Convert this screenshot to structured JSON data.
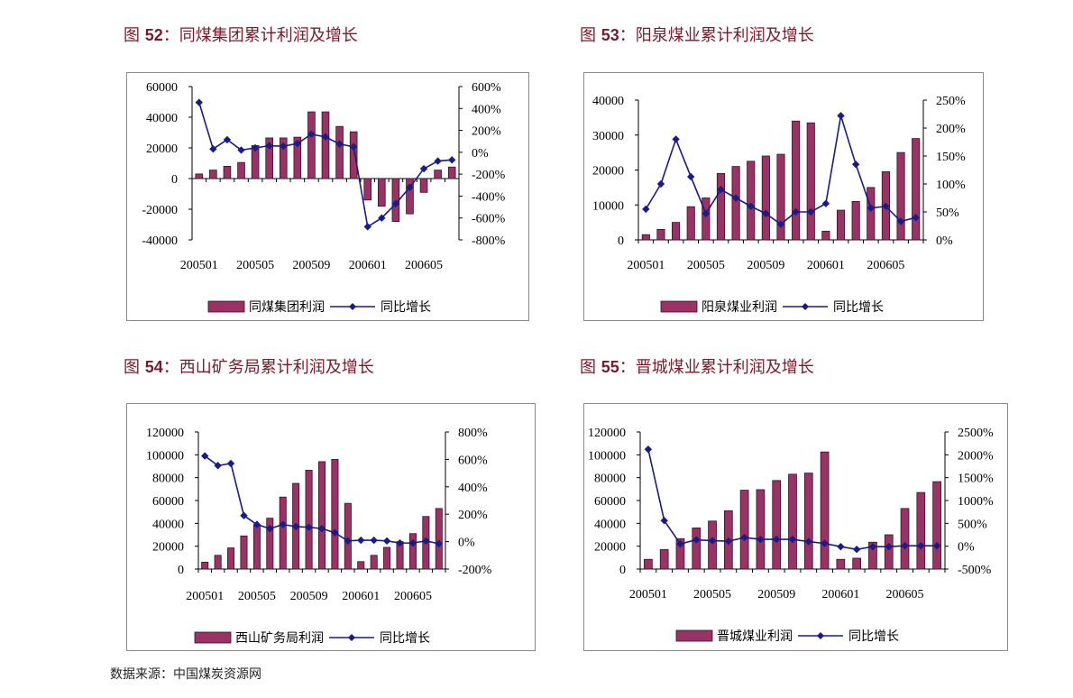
{
  "source": "数据来源：中国煤炭资源网",
  "colors": {
    "bar_fill": "#993366",
    "bar_stroke": "#3a0f22",
    "line": "#1a1a8a",
    "title": "#7a1a2a"
  },
  "chart_data": [
    {
      "type": "bar",
      "fig_label": "图",
      "fig_num": "52",
      "title": "：同煤集团累计利润及增长",
      "categories": [
        "200501",
        "200502",
        "200503",
        "200504",
        "200505",
        "200506",
        "200507",
        "200508",
        "200509",
        "200510",
        "200511",
        "200512",
        "200601",
        "200602",
        "200603",
        "200604",
        "200605",
        "200606",
        "200607"
      ],
      "x_tick_labels": [
        "200501",
        "200505",
        "200509",
        "200601",
        "200605"
      ],
      "series": [
        {
          "name": "同煤集团利润",
          "type": "bar",
          "axis": "left",
          "values": [
            3000,
            5500,
            8000,
            10500,
            21500,
            26500,
            26500,
            27000,
            43500,
            43500,
            34000,
            30500,
            -14000,
            -18000,
            -28000,
            -23000,
            -9000,
            5500,
            7500
          ]
        },
        {
          "name": "同比增长",
          "type": "line",
          "axis": "right",
          "values": [
            455,
            30,
            115,
            20,
            40,
            60,
            55,
            80,
            165,
            140,
            75,
            50,
            -680,
            -600,
            -470,
            -320,
            -150,
            -80,
            -70
          ]
        }
      ],
      "y_left": {
        "min": -40000,
        "max": 60000,
        "ticks": [
          60000,
          40000,
          20000,
          0,
          -20000,
          -40000
        ],
        "tick_labels": [
          "60000",
          "40000",
          "20000",
          "0",
          "-20000",
          "-40000"
        ]
      },
      "y_right": {
        "min": -800,
        "max": 600,
        "ticks": [
          600,
          400,
          200,
          0,
          -200,
          -400,
          -600,
          -800
        ],
        "tick_labels": [
          "600%",
          "400%",
          "200%",
          "0%",
          "-200%",
          "-400%",
          "-600%",
          "-800%"
        ]
      },
      "legend": {
        "position": "bottom",
        "bar_label": "同煤集团利润",
        "line_label": "同比增长"
      }
    },
    {
      "type": "bar",
      "fig_label": "图",
      "fig_num": "53",
      "title": "：阳泉煤业累计利润及增长",
      "categories": [
        "200501",
        "200502",
        "200503",
        "200504",
        "200505",
        "200506",
        "200507",
        "200508",
        "200509",
        "200510",
        "200511",
        "200512",
        "200601",
        "200602",
        "200603",
        "200604",
        "200605",
        "200606",
        "200607"
      ],
      "x_tick_labels": [
        "200501",
        "200505",
        "200509",
        "200601",
        "200605"
      ],
      "series": [
        {
          "name": "阳泉煤业利润",
          "type": "bar",
          "axis": "left",
          "values": [
            1500,
            3000,
            5000,
            9500,
            12000,
            19000,
            21000,
            22500,
            24000,
            24500,
            34000,
            33500,
            2500,
            8500,
            11000,
            15000,
            19500,
            25000,
            29000
          ]
        },
        {
          "name": "同比增长",
          "type": "line",
          "axis": "right",
          "values": [
            55,
            100,
            180,
            113,
            47,
            90,
            75,
            60,
            47,
            28,
            50,
            50,
            65,
            222,
            135,
            57,
            60,
            33,
            40
          ]
        }
      ],
      "y_left": {
        "min": 0,
        "max": 40000,
        "ticks": [
          40000,
          30000,
          20000,
          10000,
          0
        ],
        "tick_labels": [
          "40000",
          "30000",
          "20000",
          "10000",
          "0"
        ]
      },
      "y_right": {
        "min": 0,
        "max": 250,
        "ticks": [
          250,
          200,
          150,
          100,
          50,
          0
        ],
        "tick_labels": [
          "250%",
          "200%",
          "150%",
          "100%",
          "50%",
          "0%"
        ]
      },
      "legend": {
        "position": "bottom",
        "bar_label": "阳泉煤业利润",
        "line_label": "同比增长"
      }
    },
    {
      "type": "bar",
      "fig_label": "图",
      "fig_num": "54",
      "title": "：西山矿务局累计利润及增长",
      "categories": [
        "200501",
        "200502",
        "200503",
        "200504",
        "200505",
        "200506",
        "200507",
        "200508",
        "200509",
        "200510",
        "200511",
        "200512",
        "200601",
        "200602",
        "200603",
        "200604",
        "200605",
        "200606",
        "200607"
      ],
      "x_tick_labels": [
        "200501",
        "200505",
        "200509",
        "200601",
        "200605"
      ],
      "series": [
        {
          "name": "西山矿务局利润",
          "type": "bar",
          "axis": "left",
          "values": [
            6000,
            12000,
            18500,
            29000,
            38000,
            44500,
            63000,
            75000,
            86500,
            94000,
            96000,
            57500,
            6500,
            12000,
            19000,
            24000,
            31000,
            46000,
            53000
          ]
        },
        {
          "name": "同比增长",
          "type": "line",
          "axis": "right",
          "values": [
            625,
            555,
            570,
            190,
            125,
            95,
            125,
            110,
            105,
            95,
            65,
            5,
            10,
            10,
            5,
            -10,
            -10,
            5,
            -15
          ]
        }
      ],
      "y_left": {
        "min": 0,
        "max": 120000,
        "ticks": [
          120000,
          100000,
          80000,
          60000,
          40000,
          20000,
          0
        ],
        "tick_labels": [
          "120000",
          "100000",
          "80000",
          "60000",
          "40000",
          "20000",
          "0"
        ]
      },
      "y_right": {
        "min": -200,
        "max": 800,
        "ticks": [
          800,
          600,
          400,
          200,
          0,
          -200
        ],
        "tick_labels": [
          "800%",
          "600%",
          "400%",
          "200%",
          "0%",
          "-200%"
        ]
      },
      "legend": {
        "position": "bottom",
        "bar_label": "西山矿务局利润",
        "line_label": "同比增长"
      }
    },
    {
      "type": "bar",
      "fig_label": "图",
      "fig_num": "55",
      "title": "：晋城煤业累计利润及增长",
      "categories": [
        "200501",
        "200502",
        "200503",
        "200504",
        "200505",
        "200506",
        "200507",
        "200508",
        "200509",
        "200510",
        "200511",
        "200512",
        "200601",
        "200602",
        "200603",
        "200604",
        "200605",
        "200606",
        "200607"
      ],
      "x_tick_labels": [
        "200501",
        "200505",
        "200509",
        "200601",
        "200605"
      ],
      "series": [
        {
          "name": "晋城煤业利润",
          "type": "bar",
          "axis": "left",
          "values": [
            8500,
            17000,
            26500,
            36000,
            42000,
            51000,
            69000,
            69500,
            77500,
            83000,
            84000,
            102500,
            8500,
            9500,
            23500,
            30000,
            53000,
            67000,
            76500
          ]
        },
        {
          "name": "同比增长",
          "type": "line",
          "axis": "right",
          "values": [
            2120,
            560,
            50,
            140,
            120,
            110,
            190,
            150,
            150,
            150,
            100,
            60,
            -10,
            -70,
            -10,
            -10,
            10,
            10,
            10
          ]
        }
      ],
      "y_left": {
        "min": 0,
        "max": 120000,
        "ticks": [
          120000,
          100000,
          80000,
          60000,
          40000,
          20000,
          0
        ],
        "tick_labels": [
          "120000",
          "100000",
          "80000",
          "60000",
          "40000",
          "20000",
          "0"
        ]
      },
      "y_right": {
        "min": -500,
        "max": 2500,
        "ticks": [
          2500,
          2000,
          1500,
          1000,
          500,
          0,
          -500
        ],
        "tick_labels": [
          "2500%",
          "2000%",
          "1500%",
          "1000%",
          "500%",
          "0%",
          "-500%"
        ]
      },
      "legend": {
        "position": "bottom",
        "bar_label": "晋城煤业利润",
        "line_label": "同比增长"
      }
    }
  ]
}
